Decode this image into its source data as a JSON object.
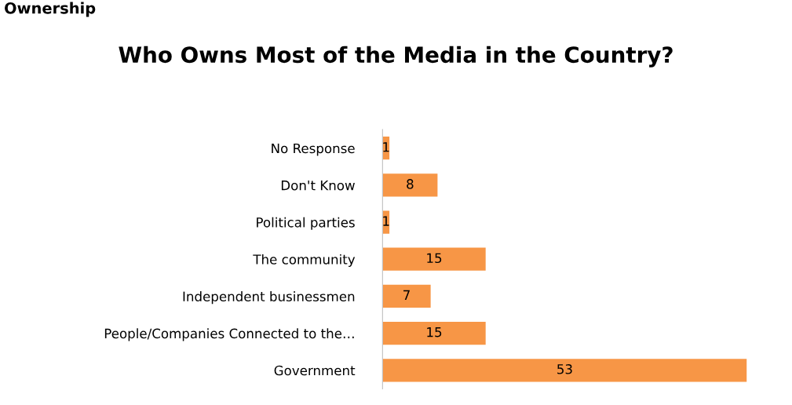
{
  "chart_data": {
    "type": "bar",
    "orientation": "horizontal",
    "title": "Who Owns Most of the Media in the Country?",
    "annotations": [
      "Ownership"
    ],
    "categories": [
      "No Response",
      "Don't Know",
      "Political parties",
      "The community",
      "Independent businessmen",
      "People/Companies Connected to the…",
      "Government"
    ],
    "values": [
      1,
      8,
      1,
      15,
      7,
      15,
      53
    ],
    "color": "#f79646",
    "data_labels": true
  }
}
